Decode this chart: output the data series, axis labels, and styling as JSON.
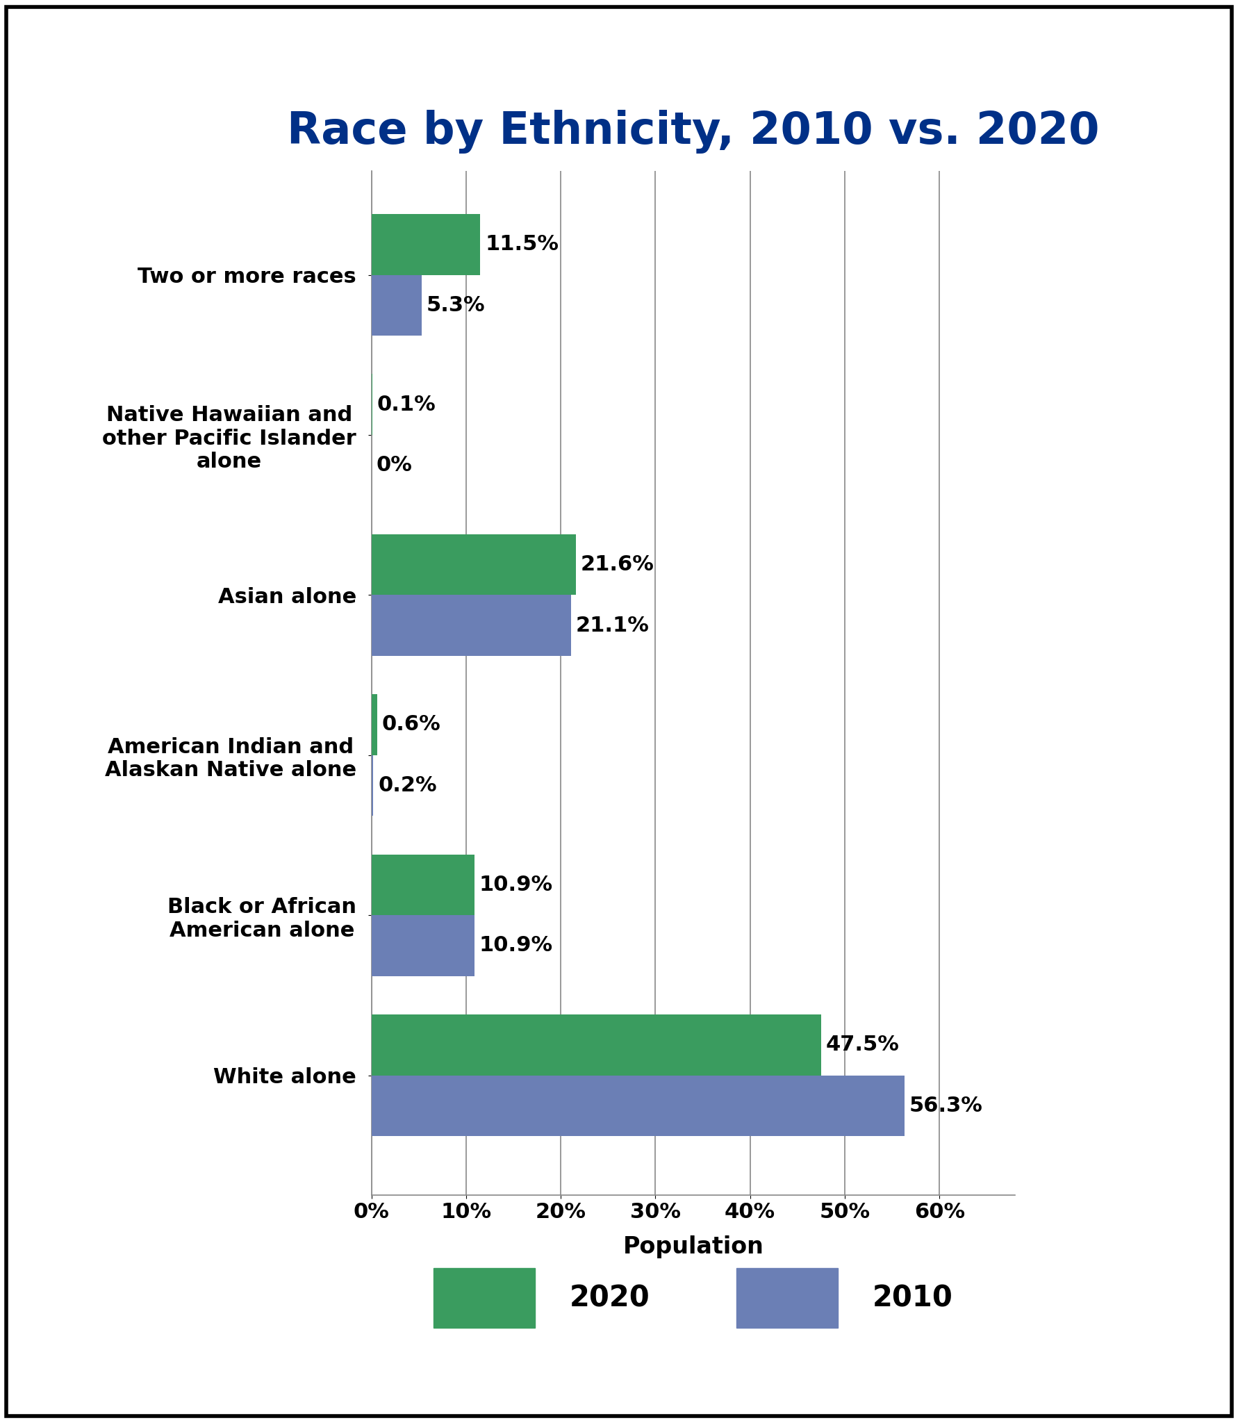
{
  "title": "Race by Ethnicity, 2010 vs. 2020",
  "title_color": "#003087",
  "categories": [
    "White alone",
    "Black or African\nAmerican alone",
    "American Indian and\nAlaskan Native alone",
    "Asian alone",
    "Native Hawaiian and\nother Pacific Islander\nalone",
    "Two or more races"
  ],
  "values_2020": [
    47.5,
    10.9,
    0.6,
    21.6,
    0.1,
    11.5
  ],
  "values_2010": [
    56.3,
    10.9,
    0.2,
    21.1,
    0.0,
    5.3
  ],
  "labels_2020": [
    "47.5%",
    "10.9%",
    "0.6%",
    "21.6%",
    "0.1%",
    "11.5%"
  ],
  "labels_2010": [
    "56.3%",
    "10.9%",
    "0.2%",
    "21.1%",
    "0%",
    "5.3%"
  ],
  "color_2020": "#3a9c5f",
  "color_2010": "#6b7fb5",
  "xlabel": "Population",
  "xlim": [
    0,
    68
  ],
  "xticks": [
    0,
    10,
    20,
    30,
    40,
    50,
    60
  ],
  "xticklabels": [
    "0%",
    "10%",
    "20%",
    "30%",
    "40%",
    "50%",
    "60%"
  ],
  "bar_height": 0.38,
  "background_color": "#ffffff",
  "legend_2020": "2020",
  "legend_2010": "2010",
  "border_color": "#000000",
  "title_fontsize": 46,
  "ylabel_fontsize": 22,
  "xlabel_fontsize": 24,
  "xtick_fontsize": 22,
  "label_fontsize": 22
}
